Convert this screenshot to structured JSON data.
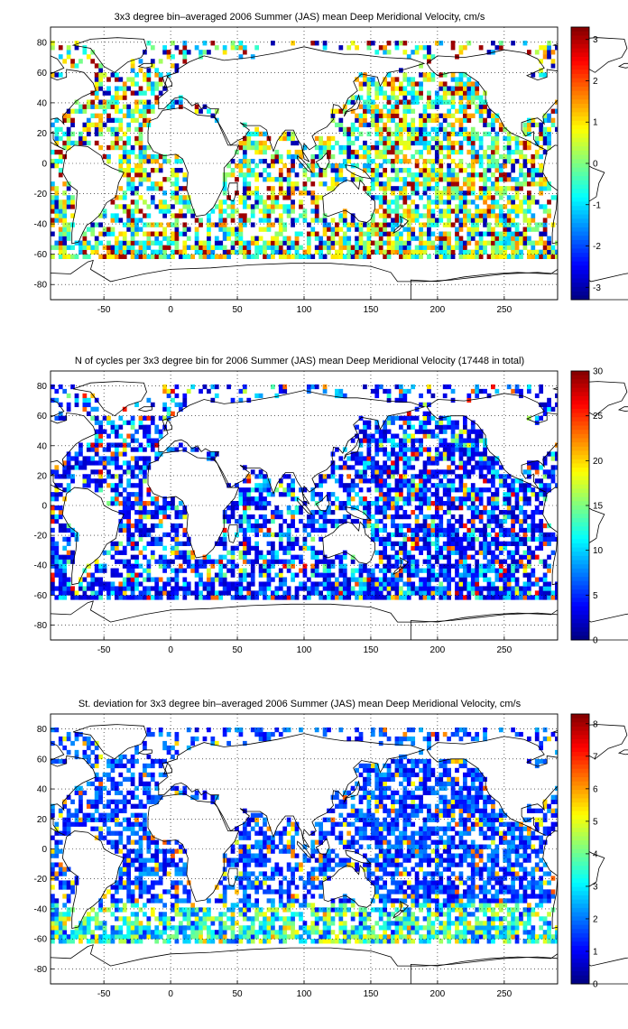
{
  "chart_data": [
    {
      "type": "heatmap",
      "title": "3x3 degree bin–averaged 2006 Summer (JAS) mean Deep Meridional Velocity, cm/s",
      "xlabel": "",
      "ylabel": "",
      "xlim": [
        -90,
        290
      ],
      "ylim": [
        -90,
        90
      ],
      "x_ticks": [
        -50,
        0,
        50,
        100,
        150,
        200,
        250
      ],
      "y_ticks": [
        80,
        60,
        40,
        20,
        0,
        -20,
        -40,
        -60,
        -80
      ],
      "grid": "dotted",
      "colormap": "jet",
      "colorbar_range": [
        -3.3,
        3.3
      ],
      "colorbar_ticks": [
        3,
        2,
        1,
        0,
        -1,
        -2,
        -3
      ],
      "bin_size_deg": 3,
      "field": "signed"
    },
    {
      "type": "heatmap",
      "title": "N of cycles per 3x3 degree bin for 2006 Summer (JAS) mean Deep Meridional Velocity (17448 in total)",
      "xlabel": "",
      "ylabel": "",
      "xlim": [
        -90,
        290
      ],
      "ylim": [
        -90,
        90
      ],
      "x_ticks": [
        -50,
        0,
        50,
        100,
        150,
        200,
        250
      ],
      "y_ticks": [
        80,
        60,
        40,
        20,
        0,
        -20,
        -40,
        -60,
        -80
      ],
      "grid": "dotted",
      "colormap": "jet",
      "colorbar_range": [
        0,
        30
      ],
      "colorbar_ticks": [
        30,
        25,
        20,
        15,
        10,
        5,
        0
      ],
      "bin_size_deg": 3,
      "field": "count"
    },
    {
      "type": "heatmap",
      "title": "St. deviation for 3x3 degree bin–averaged 2006 Summer (JAS) mean Deep Meridional Velocity, cm/s",
      "xlabel": "",
      "ylabel": "",
      "xlim": [
        -90,
        290
      ],
      "ylim": [
        -90,
        90
      ],
      "x_ticks": [
        -50,
        0,
        50,
        100,
        150,
        200,
        250
      ],
      "y_ticks": [
        80,
        60,
        40,
        20,
        0,
        -20,
        -40,
        -60,
        -80
      ],
      "grid": "dotted",
      "colormap": "jet",
      "colorbar_range": [
        0,
        8.3
      ],
      "colorbar_ticks": [
        8,
        7,
        6,
        5,
        4,
        3,
        2,
        1,
        0
      ],
      "bin_size_deg": 3,
      "field": "stdev"
    }
  ]
}
